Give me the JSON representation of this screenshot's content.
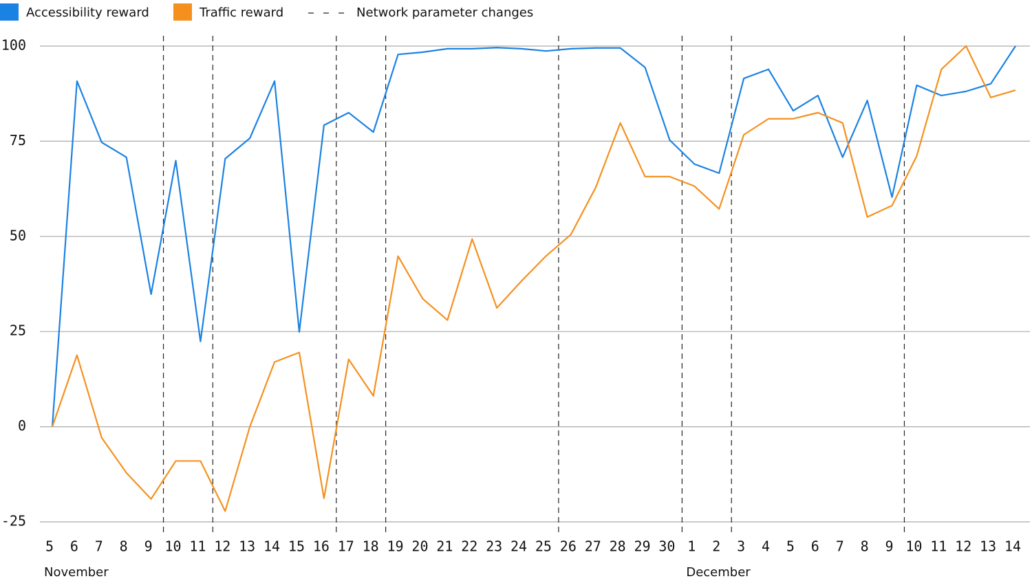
{
  "chart_data": {
    "type": "line",
    "categories": [
      "5",
      "6",
      "7",
      "8",
      "9",
      "10",
      "11",
      "12",
      "13",
      "14",
      "15",
      "16",
      "17",
      "18",
      "19",
      "20",
      "21",
      "22",
      "23",
      "24",
      "25",
      "26",
      "27",
      "28",
      "29",
      "30",
      "1",
      "2",
      "3",
      "4",
      "5",
      "6",
      "7",
      "8",
      "9",
      "10",
      "11",
      "12",
      "13",
      "14"
    ],
    "x_groups": [
      "November",
      "December"
    ],
    "series": [
      {
        "name": "Accessibility reward",
        "color": "#1a82e2",
        "values": [
          0,
          90.8,
          74.7,
          70.8,
          34.8,
          69.9,
          22.4,
          70.4,
          75.8,
          90.8,
          24.9,
          79.2,
          82.5,
          77.4,
          97.8,
          98.4,
          99.3,
          99.3,
          99.6,
          99.3,
          98.7,
          99.3,
          99.5,
          99.5,
          94.4,
          75.3,
          69,
          66.6,
          91.5,
          93.9,
          83,
          87,
          70.8,
          85.7,
          60.3,
          89.7,
          87,
          88.1,
          90.1,
          100
        ]
      },
      {
        "name": "Traffic reward",
        "color": "#f5901e",
        "values": [
          0,
          18.8,
          -2.9,
          -12.1,
          -19,
          -9,
          -9,
          -22.2,
          0,
          17,
          19.5,
          -18.8,
          17.7,
          8.1,
          44.8,
          33.6,
          28,
          49.3,
          31.2,
          38.3,
          44.9,
          50.5,
          62.8,
          79.8,
          65.7,
          65.7,
          63.2,
          57.2,
          76.7,
          80.9,
          80.9,
          82.5,
          79.8,
          55.1,
          58.1,
          71.1,
          93.9,
          100,
          86.5,
          88.4
        ]
      }
    ],
    "parameter_changes": {
      "name": "Network parameter changes",
      "color": "#222222",
      "x": [
        4.5,
        6.5,
        11.5,
        13.5,
        20.5,
        25.5,
        27.5,
        34.5
      ]
    },
    "ylim": [
      -25,
      100
    ],
    "yticks": [
      -25,
      0,
      25,
      50,
      75,
      100
    ],
    "grid": true
  }
}
